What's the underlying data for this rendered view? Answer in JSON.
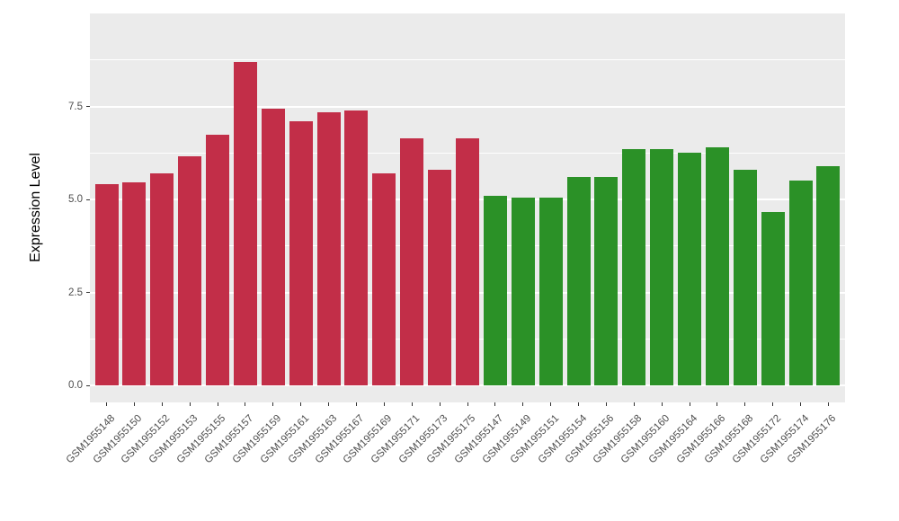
{
  "figure": {
    "background": "#FFFFFF"
  },
  "chart_data": {
    "type": "bar",
    "title": "",
    "xlabel": "",
    "ylabel": "Expression Level",
    "ylim": [
      0,
      10
    ],
    "grid": true,
    "legend": "none",
    "panel_background": "#EBEBEB",
    "gridline_color": "#FFFFFF",
    "axis_text_color": "#4D4D4D",
    "ytick_values": [
      0,
      2.5,
      5,
      7.5
    ],
    "ytick_labels": [
      "0.0",
      "2.5",
      "5.0",
      "7.5"
    ],
    "minor_tick_values": [
      1.25,
      3.75,
      6.25,
      8.75
    ],
    "group_colors": {
      "groupA": "#C22E48",
      "groupB": "#2B9127"
    },
    "categories": [
      "GSM1955148",
      "GSM1955150",
      "GSM1955152",
      "GSM1955153",
      "GSM1955155",
      "GSM1955157",
      "GSM1955159",
      "GSM1955161",
      "GSM1955163",
      "GSM1955167",
      "GSM1955169",
      "GSM1955171",
      "GSM1955173",
      "GSM1955175",
      "GSM1955147",
      "GSM1955149",
      "GSM1955151",
      "GSM1955154",
      "GSM1955156",
      "GSM1955158",
      "GSM1955160",
      "GSM1955164",
      "GSM1955166",
      "GSM1955168",
      "GSM1955172",
      "GSM1955174",
      "GSM1955176"
    ],
    "values": [
      5.4,
      5.45,
      5.7,
      6.15,
      6.75,
      8.7,
      7.45,
      7.1,
      7.35,
      7.4,
      5.7,
      6.65,
      5.8,
      6.65,
      5.1,
      5.05,
      5.05,
      5.6,
      5.6,
      6.35,
      6.35,
      6.25,
      6.4,
      5.8,
      4.65,
      5.5,
      5.9
    ],
    "bar_groups": [
      "groupA",
      "groupA",
      "groupA",
      "groupA",
      "groupA",
      "groupA",
      "groupA",
      "groupA",
      "groupA",
      "groupA",
      "groupA",
      "groupA",
      "groupA",
      "groupA",
      "groupB",
      "groupB",
      "groupB",
      "groupB",
      "groupB",
      "groupB",
      "groupB",
      "groupB",
      "groupB",
      "groupB",
      "groupB",
      "groupB",
      "groupB"
    ]
  }
}
